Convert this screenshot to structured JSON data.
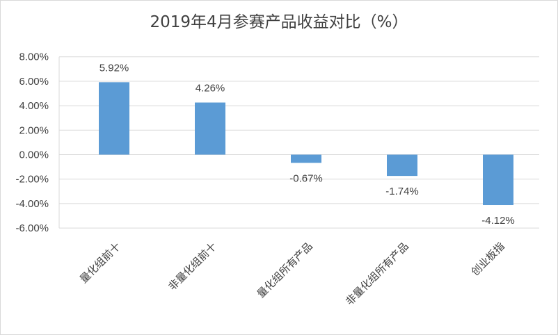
{
  "chart_data": {
    "type": "bar",
    "title": "2019年4月参赛产品收益对比（%）",
    "categories": [
      "量化组前十",
      "非量化组前十",
      "量化组所有产品",
      "非量化组所有产品",
      "创业板指"
    ],
    "values": [
      5.92,
      4.26,
      -0.67,
      -1.74,
      -4.12
    ],
    "data_labels": [
      "5.92%",
      "4.26%",
      "-0.67%",
      "-1.74%",
      "-4.12%"
    ],
    "ylim": [
      -6,
      8
    ],
    "yticks": [
      8,
      6,
      4,
      2,
      0,
      -2,
      -4,
      -6
    ],
    "ytick_labels": [
      "8.00%",
      "6.00%",
      "4.00%",
      "2.00%",
      "0.00%",
      "-2.00%",
      "-4.00%",
      "-6.00%"
    ],
    "xlabel": "",
    "ylabel": "",
    "grid": true,
    "legend": "none",
    "bar_color": "#5b9bd5",
    "grid_color": "#d9d9d9"
  }
}
